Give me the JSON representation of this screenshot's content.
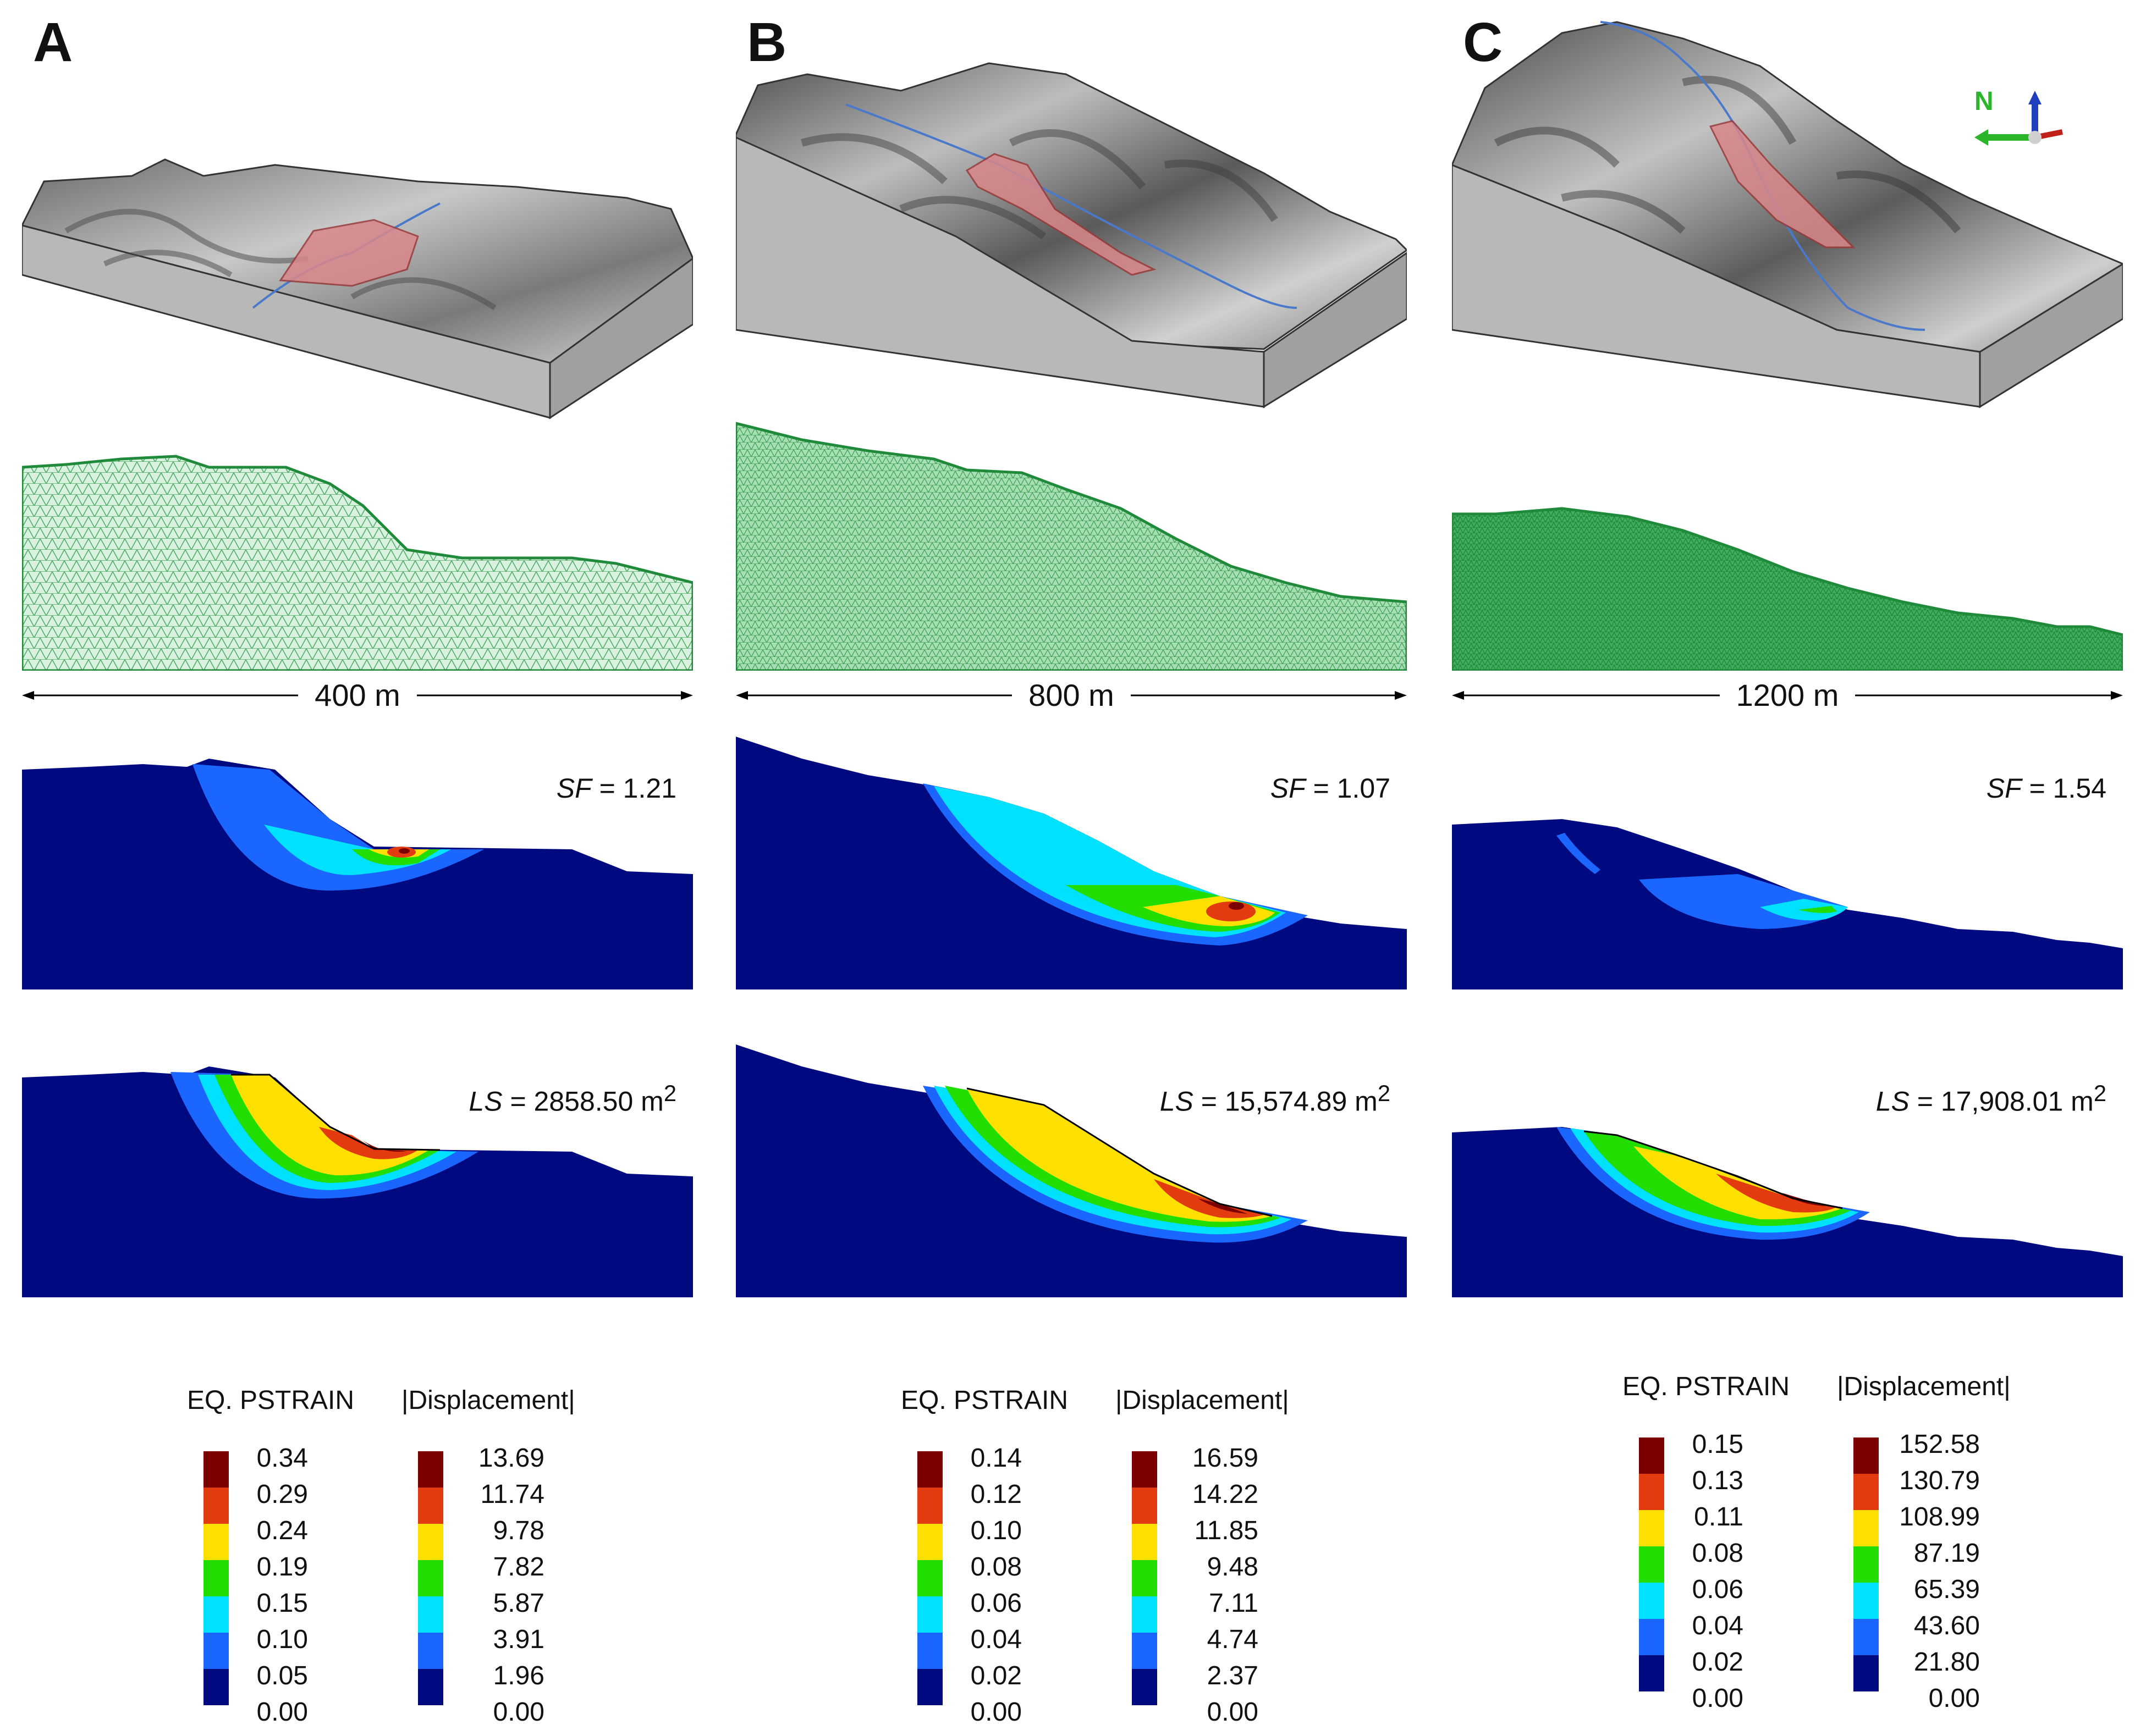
{
  "panels": [
    {
      "letter": "A",
      "scale": "400 m",
      "sf_label": "SF",
      "sf_value": " = 1.21",
      "ls_label": "LS",
      "ls_value": " = 2858.50 m",
      "ls_unit_exp": "2",
      "legend": {
        "strain_title": "EQ. PSTRAIN",
        "disp_title": "|Displacement|",
        "strain_values": [
          "0.34",
          "0.29",
          "0.24",
          "0.19",
          "0.15",
          "0.10",
          "0.05",
          "0.00"
        ],
        "disp_values": [
          "13.69",
          "11.74",
          "9.78",
          "7.82",
          "5.87",
          "3.91",
          "1.96",
          "0.00"
        ]
      }
    },
    {
      "letter": "B",
      "scale": "800 m",
      "sf_label": "SF",
      "sf_value": " = 1.07",
      "ls_label": "LS",
      "ls_value": " = 15,574.89 m",
      "ls_unit_exp": "2",
      "legend": {
        "strain_title": "EQ. PSTRAIN",
        "disp_title": "|Displacement|",
        "strain_values": [
          "0.14",
          "0.12",
          "0.10",
          "0.08",
          "0.06",
          "0.04",
          "0.02",
          "0.00"
        ],
        "disp_values": [
          "16.59",
          "14.22",
          "11.85",
          "9.48",
          "7.11",
          "4.74",
          "2.37",
          "0.00"
        ]
      }
    },
    {
      "letter": "C",
      "scale": "1200 m",
      "sf_label": "SF",
      "sf_value": " = 1.54",
      "ls_label": "LS",
      "ls_value": " = 17,908.01 m",
      "ls_unit_exp": "2",
      "north": "N",
      "legend": {
        "strain_title": "EQ. PSTRAIN",
        "disp_title": "|Displacement|",
        "strain_values": [
          "0.15",
          "0.13",
          "0.11",
          "0.08",
          "0.06",
          "0.04",
          "0.02",
          "0.00"
        ],
        "disp_values": [
          "152.58",
          "130.79",
          "108.99",
          "87.19",
          "65.39",
          "43.60",
          "21.80",
          "0.00"
        ]
      }
    }
  ],
  "colors": {
    "scale": [
      "#7b0000",
      "#e33b10",
      "#ffe000",
      "#22dd00",
      "#00e0ff",
      "#1a66ff",
      "#000a80"
    ],
    "deep": "#000a80",
    "mesh_fill": "#9fdcae",
    "mesh_line": "#1f8a3a",
    "landslide": "#d9868a"
  }
}
